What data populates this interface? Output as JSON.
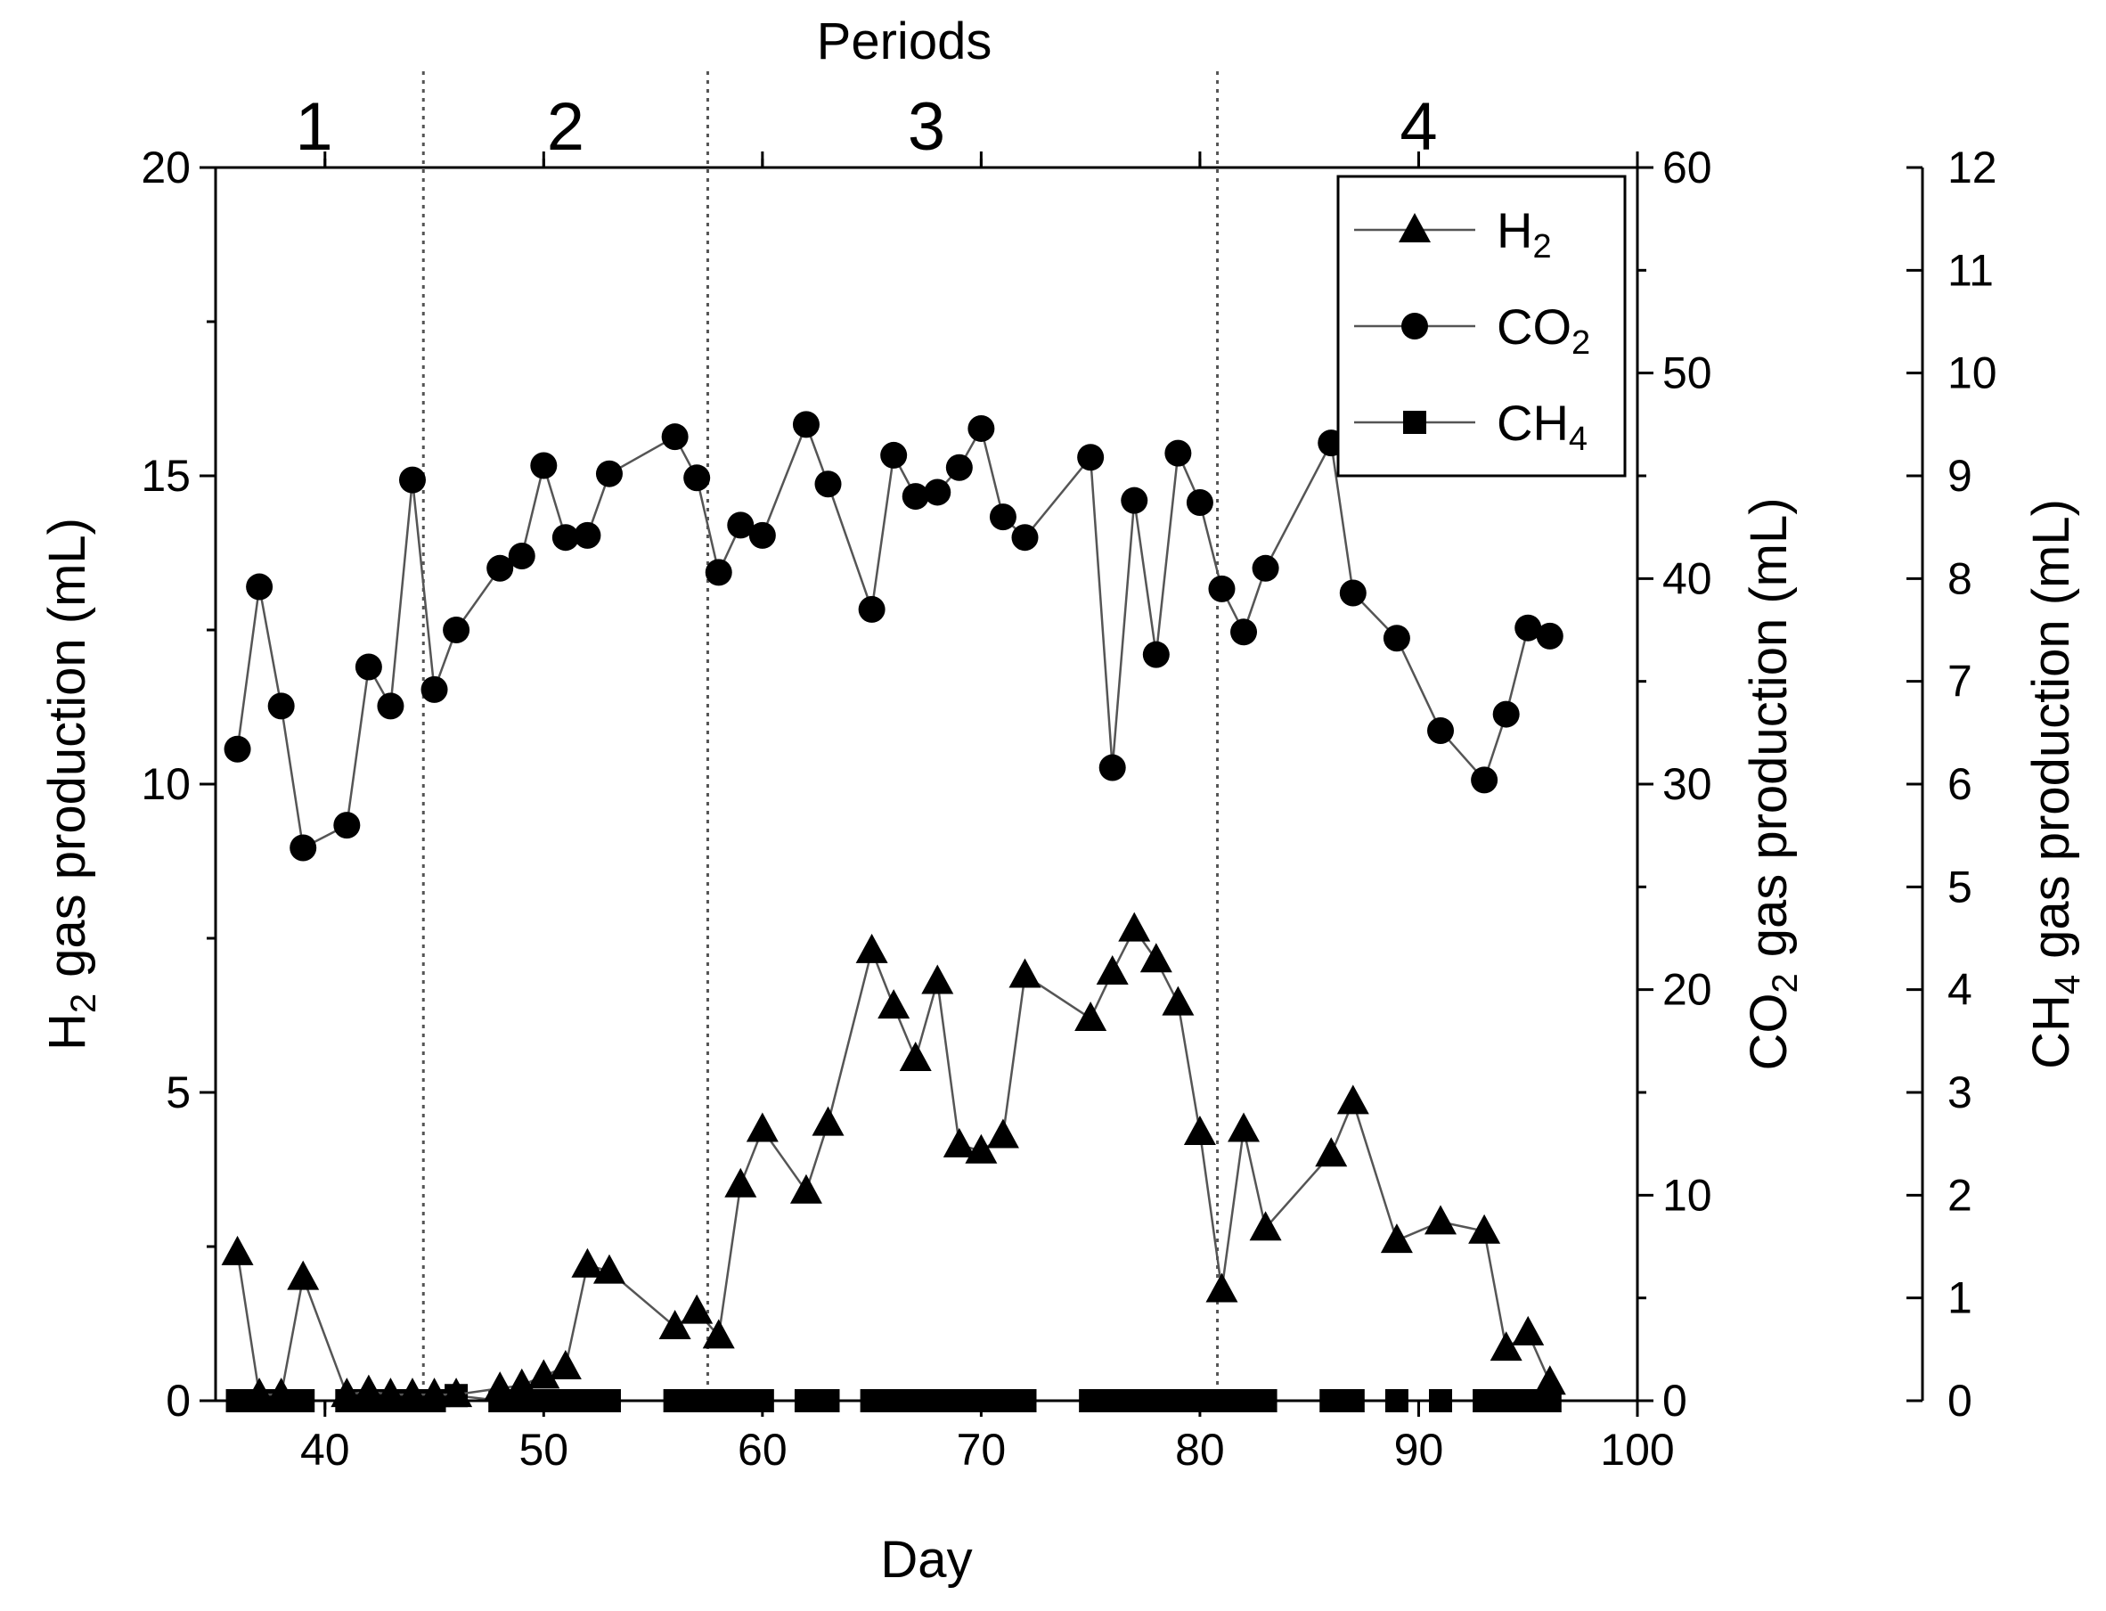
{
  "chart_data": {
    "type": "line",
    "title": "",
    "top_axis": {
      "label": "Periods",
      "periods": [
        "1",
        "2",
        "3",
        "4"
      ],
      "period_centers": [
        39.5,
        51,
        67.5,
        90
      ],
      "boundaries": [
        44.5,
        57.5,
        80.8
      ]
    },
    "xlabel": "Day",
    "xlim": [
      35,
      100
    ],
    "xticks": [
      40,
      50,
      60,
      70,
      80,
      90,
      100
    ],
    "y_axes": [
      {
        "id": "h2",
        "label": "H",
        "sub": "2",
        "suffix": "gas production (mL)",
        "ylim": [
          0,
          20
        ],
        "ticks": [
          0,
          5,
          10,
          15,
          20
        ]
      },
      {
        "id": "co2",
        "label": "CO",
        "sub": "2",
        "suffix": "gas production (mL)",
        "ylim": [
          0,
          60
        ],
        "ticks": [
          0,
          10,
          20,
          30,
          40,
          50,
          60
        ]
      },
      {
        "id": "ch4",
        "label": "CH",
        "sub": "4",
        "suffix": "gas production (mL)",
        "ylim": [
          0,
          12
        ],
        "ticks": [
          0,
          1,
          2,
          3,
          4,
          5,
          6,
          7,
          8,
          9,
          10,
          11,
          12
        ]
      }
    ],
    "legend": {
      "position": "top-right"
    },
    "series": [
      {
        "name": "H2",
        "label": "H",
        "sub": "2",
        "axis": "h2",
        "marker": "triangle",
        "x": [
          36,
          37,
          38,
          39,
          41,
          42,
          43,
          44,
          45,
          46,
          48,
          49,
          50,
          51,
          52,
          53,
          56,
          57,
          58,
          59,
          60,
          62,
          63,
          65,
          66,
          67,
          68,
          69,
          70,
          71,
          72,
          75,
          76,
          77,
          78,
          79,
          80,
          81,
          82,
          83,
          86,
          87,
          89,
          91,
          93,
          94,
          95,
          96
        ],
        "values": [
          2.4,
          0.1,
          0.1,
          2.0,
          0.1,
          0.15,
          0.1,
          0.1,
          0.1,
          0.1,
          0.2,
          0.25,
          0.4,
          0.55,
          2.2,
          2.1,
          1.2,
          1.45,
          1.05,
          3.5,
          4.4,
          3.4,
          4.5,
          7.3,
          6.4,
          5.55,
          6.8,
          4.15,
          4.05,
          4.3,
          6.9,
          6.2,
          6.95,
          7.65,
          7.15,
          6.45,
          4.35,
          1.8,
          4.4,
          2.8,
          4.0,
          4.85,
          2.6,
          2.9,
          2.75,
          0.85,
          1.1,
          0.3
        ]
      },
      {
        "name": "CO2",
        "label": "CO",
        "sub": "2",
        "axis": "co2",
        "marker": "circle",
        "x": [
          36,
          37,
          38,
          39,
          41,
          42,
          43,
          44,
          45,
          46,
          48,
          49,
          50,
          51,
          52,
          53,
          56,
          57,
          58,
          59,
          60,
          62,
          63,
          65,
          66,
          67,
          68,
          69,
          70,
          71,
          72,
          75,
          76,
          77,
          78,
          79,
          80,
          81,
          82,
          83,
          86,
          87,
          89,
          91,
          93,
          94,
          95,
          96
        ],
        "values": [
          31.7,
          39.6,
          33.8,
          26.9,
          28.0,
          35.7,
          33.8,
          44.8,
          34.6,
          37.5,
          40.5,
          41.1,
          45.5,
          42.0,
          42.1,
          45.1,
          46.9,
          44.9,
          40.3,
          42.6,
          42.1,
          47.5,
          44.6,
          38.5,
          46.0,
          44.0,
          44.2,
          45.4,
          47.3,
          43.0,
          42.0,
          45.9,
          30.8,
          43.8,
          36.3,
          46.1,
          43.7,
          39.5,
          37.4,
          40.5,
          46.6,
          39.3,
          37.1,
          32.6,
          30.2,
          33.4,
          37.6,
          37.2
        ]
      },
      {
        "name": "CH4",
        "label": "CH",
        "sub": "4",
        "axis": "ch4",
        "marker": "square",
        "x": [
          36,
          37,
          38,
          39,
          41,
          42,
          43,
          44,
          45,
          46,
          48,
          49,
          50,
          51,
          52,
          53,
          56,
          57,
          58,
          59,
          60,
          62,
          63,
          65,
          66,
          67,
          68,
          69,
          70,
          71,
          72,
          75,
          76,
          77,
          78,
          79,
          80,
          81,
          82,
          83,
          86,
          87,
          89,
          91,
          93,
          94,
          95,
          96
        ],
        "values": [
          0,
          0,
          0,
          0,
          0,
          0,
          0,
          0,
          0,
          0.05,
          0,
          0,
          0,
          0,
          0,
          0,
          0,
          0,
          0,
          0,
          0,
          0,
          0,
          0,
          0,
          0,
          0,
          0,
          0,
          0,
          0,
          0,
          0,
          0,
          0,
          0,
          0,
          0,
          0,
          0,
          0,
          0,
          0,
          0,
          0,
          0,
          0,
          0
        ]
      }
    ]
  }
}
